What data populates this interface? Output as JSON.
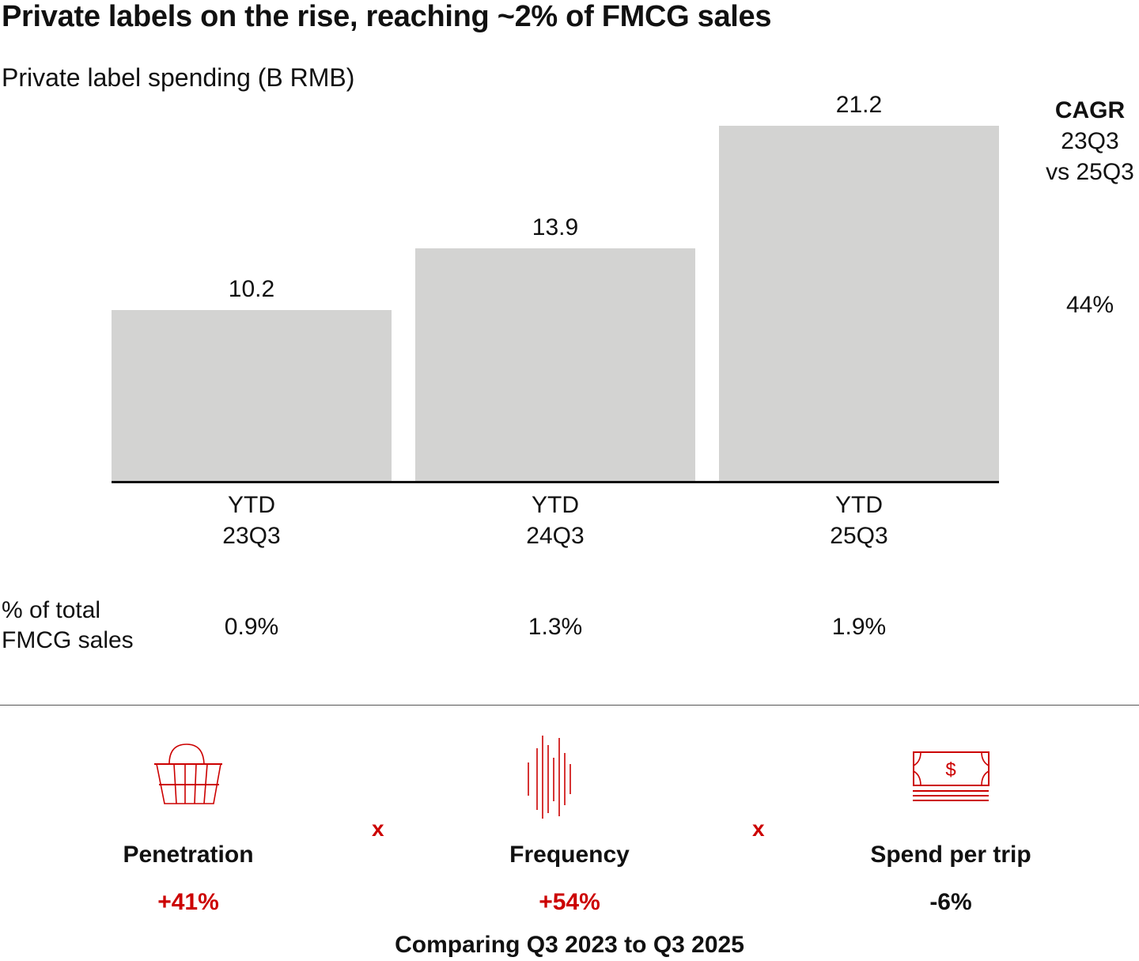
{
  "title": "Private labels on the rise, reaching ~2% of FMCG sales",
  "chart_data": {
    "type": "bar",
    "title": "Private label spending (B RMB)",
    "categories": [
      [
        "YTD",
        "23Q3"
      ],
      [
        "YTD",
        "24Q3"
      ],
      [
        "YTD",
        "25Q3"
      ]
    ],
    "values": [
      10.2,
      13.9,
      21.2
    ],
    "value_labels": [
      "10.2",
      "13.9",
      "21.2"
    ],
    "ylim": [
      0,
      21.2
    ],
    "color": "#d3d3d2",
    "cagr": {
      "label": "CAGR",
      "line1": "23Q3",
      "line2": "vs 25Q3",
      "value": "44%"
    },
    "share": {
      "label1": "% of total",
      "label2": "FMCG sales",
      "values": [
        "0.9%",
        "1.3%",
        "1.9%"
      ]
    }
  },
  "drivers": [
    {
      "icon": "basket-icon",
      "label": "Penetration",
      "value": "+41%",
      "color": "#cc0000"
    },
    {
      "icon": "frequency-icon",
      "label": "Frequency",
      "value": "+54%",
      "color": "#cc0000"
    },
    {
      "icon": "money-icon",
      "label": "Spend per trip",
      "value": "-6%",
      "color": "#111111"
    }
  ],
  "operator": "x",
  "footnote": "Comparing Q3 2023 to Q3 2025"
}
